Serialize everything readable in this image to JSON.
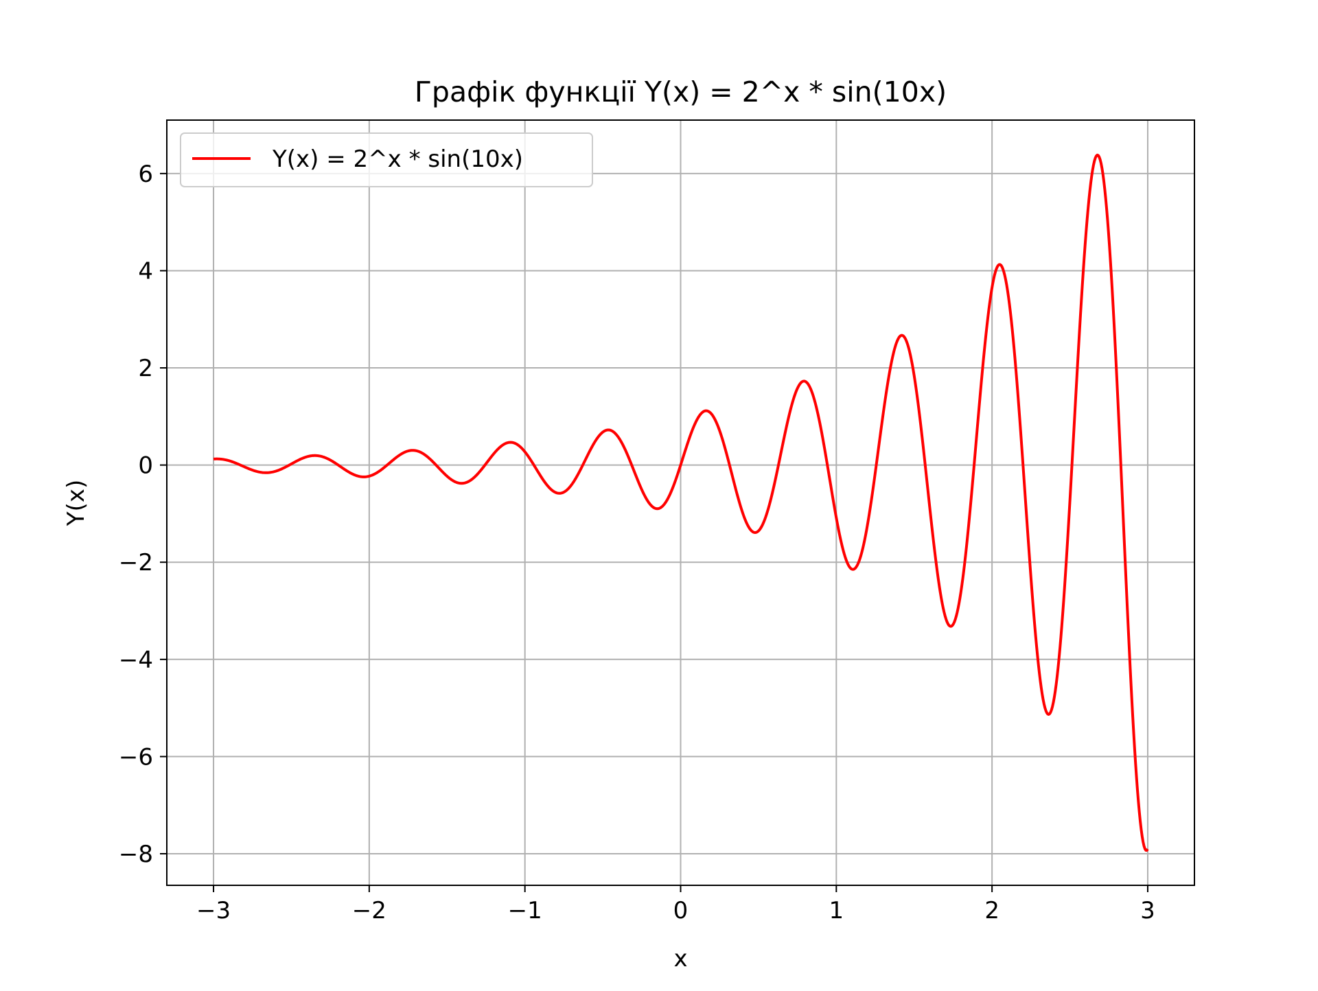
{
  "chart_data": {
    "type": "line",
    "title": "Графік функції Y(x) = 2^x * sin(10x)",
    "xlabel": "x",
    "ylabel": "Y(x)",
    "xlim": [
      -3.3,
      3.3
    ],
    "ylim": [
      -8.65,
      7.1
    ],
    "grid": true,
    "legend_position": "upper-left",
    "x_ticks": [
      {
        "value": -3,
        "label": "−3"
      },
      {
        "value": -2,
        "label": "−2"
      },
      {
        "value": -1,
        "label": "−1"
      },
      {
        "value": 0,
        "label": "0"
      },
      {
        "value": 1,
        "label": "1"
      },
      {
        "value": 2,
        "label": "2"
      },
      {
        "value": 3,
        "label": "3"
      }
    ],
    "y_ticks": [
      {
        "value": -8,
        "label": "−8"
      },
      {
        "value": -6,
        "label": "−6"
      },
      {
        "value": -4,
        "label": "−4"
      },
      {
        "value": -2,
        "label": "−2"
      },
      {
        "value": 0,
        "label": "0"
      },
      {
        "value": 2,
        "label": "2"
      },
      {
        "value": 4,
        "label": "4"
      },
      {
        "value": 6,
        "label": "6"
      }
    ],
    "series": [
      {
        "name": "Y(x) = 2^x * sin(10x)",
        "color": "#ff0000",
        "function": "2^x * sin(10x)",
        "x_range": [
          -3,
          3
        ],
        "samples": 1000
      }
    ]
  }
}
